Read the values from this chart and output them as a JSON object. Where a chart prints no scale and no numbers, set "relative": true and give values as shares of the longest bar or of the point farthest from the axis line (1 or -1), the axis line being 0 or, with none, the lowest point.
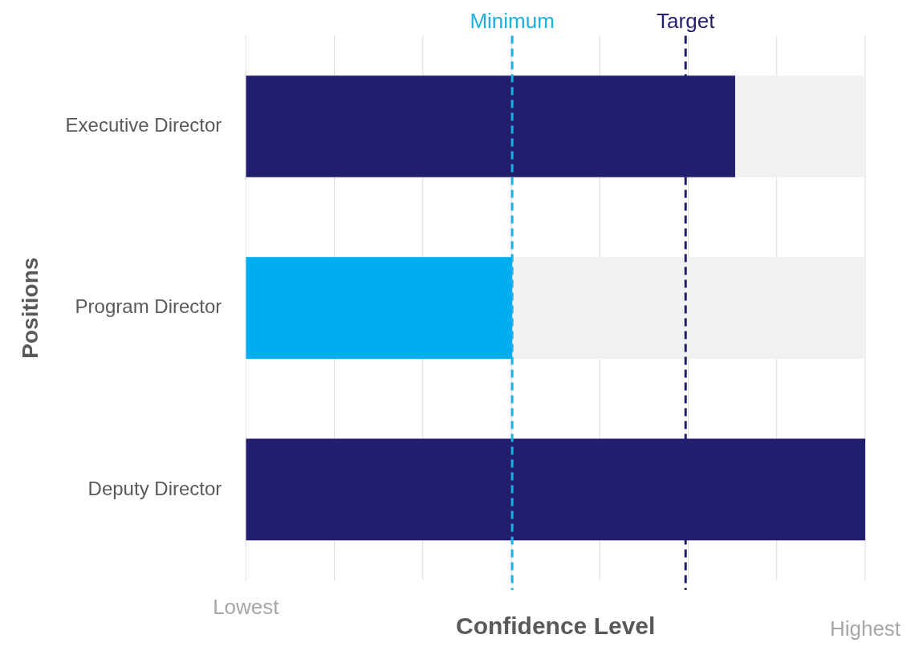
{
  "chart_data": {
    "type": "bar",
    "orientation": "horizontal",
    "stacked": true,
    "relative": true,
    "xlabel": "Confidence Level",
    "ylabel": "Positions",
    "categories": [
      "Executive Director",
      "Program Director",
      "Deputy Director"
    ],
    "series": [
      {
        "colors": [
          "#221e6e",
          "#00adee",
          "#221e6e"
        ],
        "values": [
          0.79,
          0.43,
          1
        ]
      },
      {
        "color": "#f0f1f1",
        "values": [
          0.21,
          0.57,
          null
        ]
      }
    ],
    "annotations": [
      "Lowest",
      "Highest"
    ],
    "grid": "x",
    "legend": false,
    "ref_lines": [
      {
        "axis": "x",
        "value": 0.43,
        "label": "Minimum",
        "color": "#1ab0e8",
        "line_style": "dashed"
      },
      {
        "axis": "x",
        "value": 0.71,
        "label": "Target",
        "color": "#221e6e",
        "line_style": "dashed"
      }
    ]
  }
}
